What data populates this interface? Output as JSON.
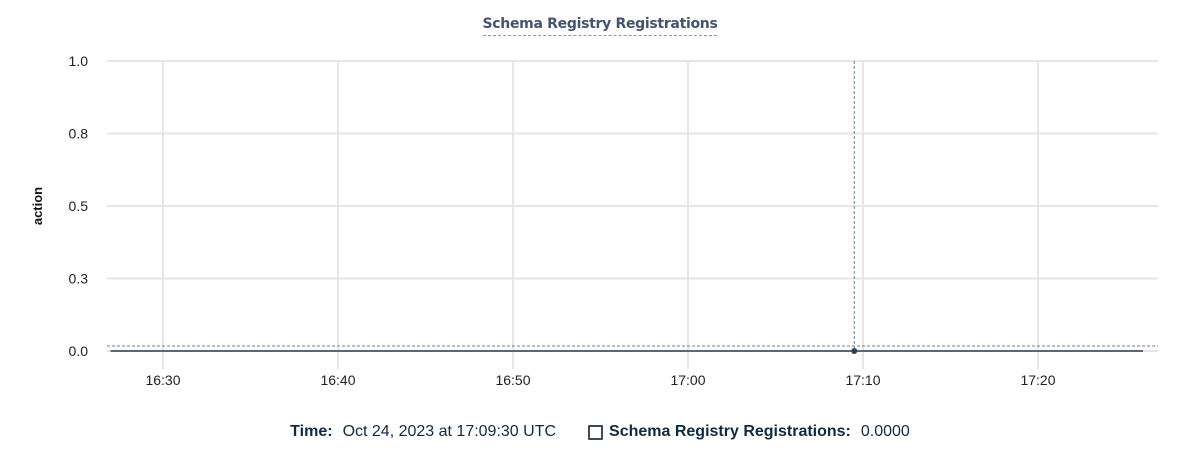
{
  "chart_data": {
    "type": "line",
    "title": "Schema Registry Registrations",
    "ylabel": "action",
    "xlabel": "",
    "ylim": [
      0,
      1
    ],
    "y_ticks": [
      0,
      0.25,
      0.5,
      0.75,
      1.0
    ],
    "y_tick_labels": [
      "0.0",
      "0.3",
      "0.5",
      "0.8",
      "1.0"
    ],
    "x_tick_labels": [
      "16:30",
      "16:40",
      "16:50",
      "17:00",
      "17:10",
      "17:20"
    ],
    "grid": true,
    "series": [
      {
        "name": "Schema Registry Registrations",
        "color": "#2c3e5c",
        "x": [
          "16:27",
          "16:30",
          "16:35",
          "16:40",
          "16:45",
          "16:50",
          "16:55",
          "17:00",
          "17:05",
          "17:09:30",
          "17:15",
          "17:20",
          "17:25",
          "17:26"
        ],
        "values": [
          0,
          0,
          0,
          0,
          0,
          0,
          0,
          0,
          0,
          0,
          0,
          0,
          0,
          0
        ]
      }
    ],
    "crosshair": {
      "x": "17:09:30",
      "y": 0
    }
  },
  "legend": {
    "time_label": "Time:",
    "time_value": "Oct 24, 2023 at 17:09:30 UTC",
    "series_label": "Schema Registry Registrations:",
    "series_value": "0.0000"
  }
}
